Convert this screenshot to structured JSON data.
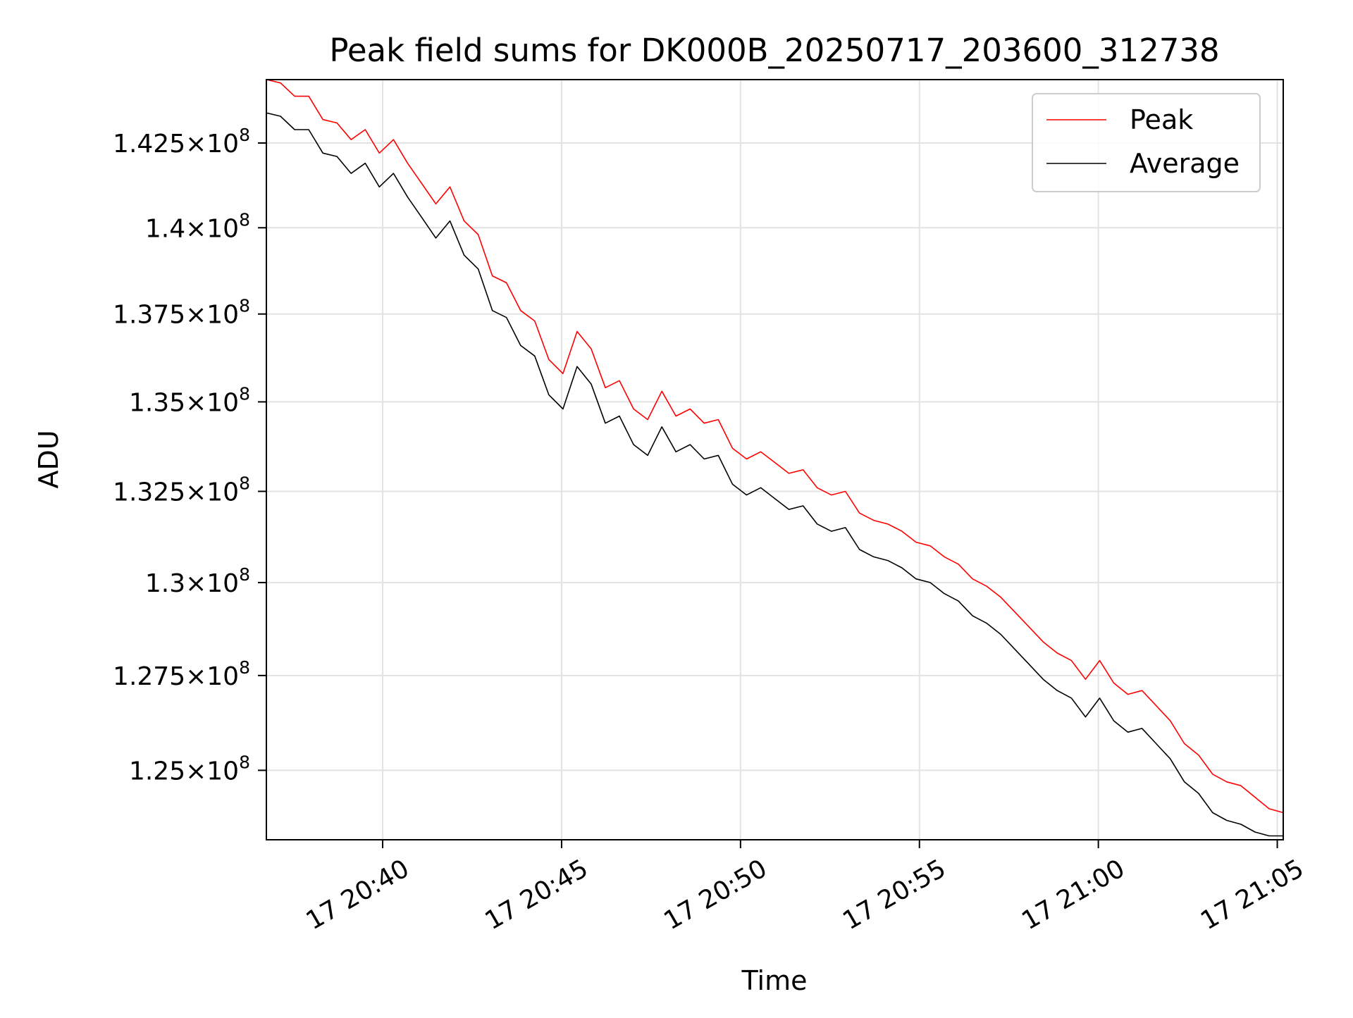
{
  "chart_data": {
    "type": "line",
    "title": "Peak field sums for DK000B_20250717_203600_312738",
    "xlabel": "Time",
    "ylabel": "ADU",
    "x_start": "17 20:36:45",
    "x_end": "17 21:05:10",
    "xlim": [
      "17 20:36:45",
      "17 21:05:10"
    ],
    "ylim": [
      123200000,
      144400000
    ],
    "y_scale": "log",
    "grid": true,
    "legend_position": "top-right",
    "x_ticks": [
      {
        "value": "17 20:40:00",
        "label": "17 20:40"
      },
      {
        "value": "17 20:45:00",
        "label": "17 20:45"
      },
      {
        "value": "17 20:50:00",
        "label": "17 20:50"
      },
      {
        "value": "17 20:55:00",
        "label": "17 20:55"
      },
      {
        "value": "17 21:00:00",
        "label": "17 21:00"
      },
      {
        "value": "17 21:05:00",
        "label": "17 21:05"
      }
    ],
    "y_ticks": [
      {
        "value": 142500000,
        "mantissa": "1.425",
        "exp": "8"
      },
      {
        "value": 140000000,
        "mantissa": "1.4",
        "exp": "8"
      },
      {
        "value": 137500000,
        "mantissa": "1.375",
        "exp": "8"
      },
      {
        "value": 135000000,
        "mantissa": "1.35",
        "exp": "8"
      },
      {
        "value": 132500000,
        "mantissa": "1.325",
        "exp": "8"
      },
      {
        "value": 130000000,
        "mantissa": "1.3",
        "exp": "8"
      },
      {
        "value": 127500000,
        "mantissa": "1.275",
        "exp": "8"
      },
      {
        "value": 125000000,
        "mantissa": "1.25",
        "exp": "8"
      }
    ],
    "series": [
      {
        "name": "Peak",
        "color": "#ff0000",
        "values": [
          144400000,
          144300000,
          143900000,
          143900000,
          143200000,
          143100000,
          142600000,
          142900000,
          142200000,
          142600000,
          141900000,
          141300000,
          140700000,
          141200000,
          140200000,
          139800000,
          138600000,
          138400000,
          137600000,
          137300000,
          136200000,
          135800000,
          137000000,
          136500000,
          135400000,
          135600000,
          134800000,
          134500000,
          135300000,
          134600000,
          134800000,
          134400000,
          134500000,
          133700000,
          133400000,
          133600000,
          133300000,
          133000000,
          133100000,
          132600000,
          132400000,
          132500000,
          131900000,
          131700000,
          131600000,
          131400000,
          131100000,
          131000000,
          130700000,
          130500000,
          130100000,
          129900000,
          129600000,
          129200000,
          128800000,
          128400000,
          128100000,
          127900000,
          127400000,
          127900000,
          127300000,
          127000000,
          127100000,
          126700000,
          126300000,
          125700000,
          125400000,
          124900000,
          124700000,
          124600000,
          124300000,
          124000000,
          123900000
        ]
      },
      {
        "name": "Average",
        "color": "#000000",
        "values": [
          143400000,
          143300000,
          142900000,
          142900000,
          142200000,
          142100000,
          141600000,
          141900000,
          141200000,
          141600000,
          140900000,
          140300000,
          139700000,
          140200000,
          139200000,
          138800000,
          137600000,
          137400000,
          136600000,
          136300000,
          135200000,
          134800000,
          136000000,
          135500000,
          134400000,
          134600000,
          133800000,
          133500000,
          134300000,
          133600000,
          133800000,
          133400000,
          133500000,
          132700000,
          132400000,
          132600000,
          132300000,
          132000000,
          132100000,
          131600000,
          131400000,
          131500000,
          130900000,
          130700000,
          130600000,
          130400000,
          130100000,
          130000000,
          129700000,
          129500000,
          129100000,
          128900000,
          128600000,
          128200000,
          127800000,
          127400000,
          127100000,
          126900000,
          126400000,
          126900000,
          126300000,
          126000000,
          126100000,
          125700000,
          125300000,
          124700000,
          124400000,
          123900000,
          123700000,
          123600000,
          123400000,
          123300000,
          123300000
        ]
      }
    ]
  }
}
